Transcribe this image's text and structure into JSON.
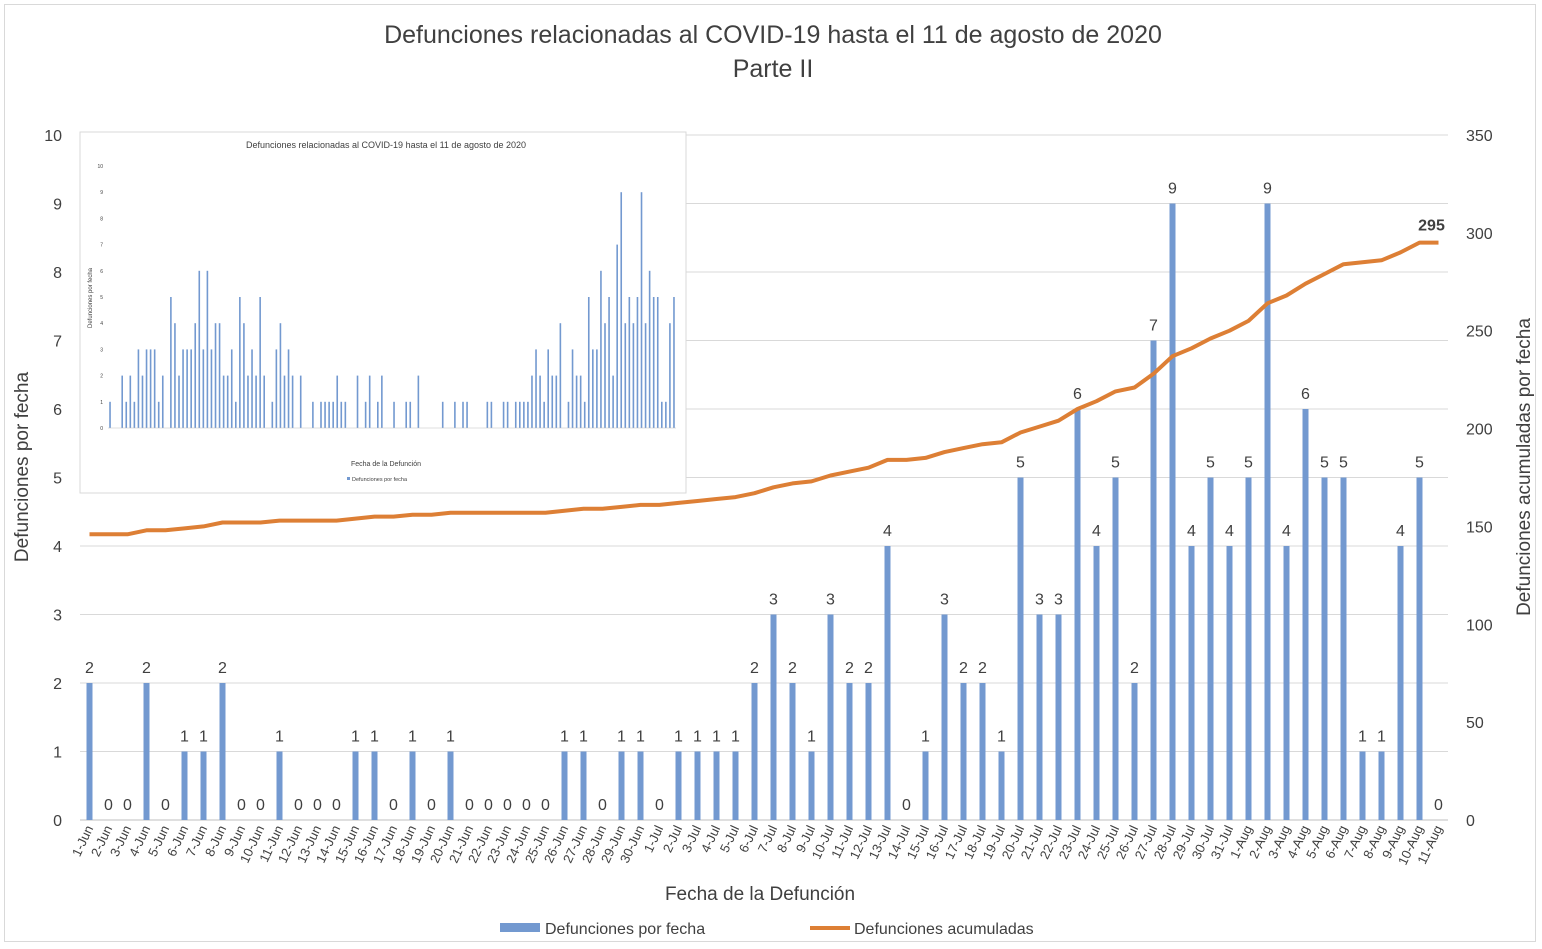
{
  "chart_data": {
    "type": "bar",
    "title": "Defunciones relacionadas al COVID-19 hasta el 11 de agosto de 2020",
    "subtitle": "Parte II",
    "xlabel": "Fecha de la Defunción",
    "ylabel_left": "Defunciones por fecha",
    "ylabel_right": "Defunciones acumuladas por fecha",
    "ylim_left": [
      0,
      10
    ],
    "ylim_right": [
      0,
      350
    ],
    "yticks_left": [
      "0",
      "1",
      "2",
      "3",
      "4",
      "5",
      "6",
      "7",
      "8",
      "9",
      "10"
    ],
    "yticks_right": [
      "0",
      "50",
      "100",
      "150",
      "200",
      "250",
      "300",
      "350"
    ],
    "grid": true,
    "legend_position": "bottom",
    "categories": [
      "1-Jun",
      "2-Jun",
      "3-Jun",
      "4-Jun",
      "5-Jun",
      "6-Jun",
      "7-Jun",
      "8-Jun",
      "9-Jun",
      "10-Jun",
      "11-Jun",
      "12-Jun",
      "13-Jun",
      "14-Jun",
      "15-Jun",
      "16-Jun",
      "17-Jun",
      "18-Jun",
      "19-Jun",
      "20-Jun",
      "21-Jun",
      "22-Jun",
      "23-Jun",
      "24-Jun",
      "25-Jun",
      "26-Jun",
      "27-Jun",
      "28-Jun",
      "29-Jun",
      "30-Jun",
      "1-Jul",
      "2-Jul",
      "3-Jul",
      "4-Jul",
      "5-Jul",
      "6-Jul",
      "7-Jul",
      "8-Jul",
      "9-Jul",
      "10-Jul",
      "11-Jul",
      "12-Jul",
      "13-Jul",
      "14-Jul",
      "15-Jul",
      "16-Jul",
      "17-Jul",
      "18-Jul",
      "19-Jul",
      "20-Jul",
      "21-Jul",
      "22-Jul",
      "23-Jul",
      "24-Jul",
      "25-Jul",
      "26-Jul",
      "27-Jul",
      "28-Jul",
      "29-Jul",
      "30-Jul",
      "31-Jul",
      "1-Aug",
      "2-Aug",
      "3-Aug",
      "4-Aug",
      "5-Aug",
      "6-Aug",
      "7-Aug",
      "8-Aug",
      "9-Aug",
      "10-Aug",
      "11-Aug"
    ],
    "series": [
      {
        "name": "Defunciones por fecha",
        "type": "bar",
        "axis": "left",
        "color": "#7399d0",
        "values": [
          2,
          0,
          0,
          2,
          0,
          1,
          1,
          2,
          0,
          0,
          1,
          0,
          0,
          0,
          1,
          1,
          0,
          1,
          0,
          1,
          0,
          0,
          0,
          0,
          0,
          1,
          1,
          0,
          1,
          1,
          0,
          1,
          1,
          1,
          1,
          2,
          3,
          2,
          1,
          3,
          2,
          2,
          4,
          0,
          1,
          3,
          2,
          2,
          1,
          5,
          3,
          3,
          6,
          4,
          5,
          2,
          7,
          9,
          4,
          5,
          4,
          5,
          9,
          4,
          6,
          5,
          5,
          1,
          1,
          4,
          5,
          0
        ]
      },
      {
        "name": "Defunciones acumuladas",
        "type": "line",
        "axis": "right",
        "color": "#dd7f35",
        "values": [
          146,
          146,
          146,
          148,
          148,
          149,
          150,
          152,
          152,
          152,
          153,
          153,
          153,
          153,
          154,
          155,
          155,
          156,
          156,
          157,
          157,
          157,
          157,
          157,
          157,
          158,
          159,
          159,
          160,
          161,
          161,
          162,
          163,
          164,
          165,
          167,
          170,
          172,
          173,
          176,
          178,
          180,
          184,
          184,
          185,
          188,
          190,
          192,
          193,
          198,
          201,
          204,
          210,
          214,
          219,
          221,
          228,
          237,
          241,
          246,
          250,
          255,
          264,
          268,
          274,
          279,
          284,
          285,
          286,
          290,
          295,
          295
        ],
        "annotation": "295"
      }
    ],
    "inset": {
      "title": "Defunciones relacionadas al COVID-19 hasta el 11 de agosto de 2020",
      "ylabel": "Defunciones por fecha",
      "xlabel": "Fecha de la Defunción",
      "legend": "Defunciones por fecha",
      "yticks": [
        "0",
        "1",
        "2",
        "3",
        "4",
        "5",
        "6",
        "7",
        "8",
        "9",
        "10"
      ],
      "ylim": [
        0,
        10
      ],
      "values": [
        1,
        0,
        0,
        2,
        1,
        2,
        1,
        3,
        2,
        3,
        3,
        3,
        1,
        2,
        0,
        5,
        4,
        2,
        3,
        3,
        3,
        4,
        6,
        3,
        6,
        3,
        4,
        4,
        2,
        2,
        3,
        1,
        5,
        4,
        2,
        3,
        2,
        5,
        2,
        0,
        1,
        3,
        4,
        2,
        3,
        2,
        0,
        2,
        0,
        0,
        1,
        0,
        1,
        1,
        1,
        1,
        2,
        1,
        1,
        0,
        0,
        2,
        0,
        1,
        2,
        0,
        1,
        2,
        0,
        0,
        1,
        0,
        0,
        1,
        1,
        0,
        2,
        0,
        0,
        0,
        0,
        0,
        1,
        0,
        0,
        1,
        0,
        1,
        1,
        0,
        0,
        0,
        0,
        1,
        1,
        0,
        0,
        1,
        1,
        0,
        1,
        1,
        1,
        1,
        2,
        3,
        2,
        1,
        3,
        2,
        2,
        4,
        0,
        1,
        3,
        2,
        2,
        1,
        5,
        3,
        3,
        6,
        4,
        5,
        2,
        7,
        9,
        4,
        5,
        4,
        5,
        9,
        4,
        6,
        5,
        5,
        1,
        1,
        4,
        5
      ]
    }
  }
}
